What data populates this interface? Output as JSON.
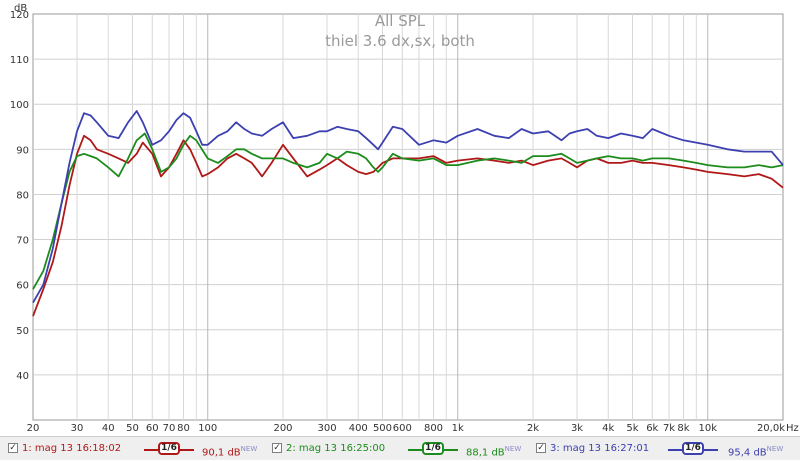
{
  "chart_data": {
    "type": "line",
    "title": "All SPL",
    "subtitle": "thiel 3.6 dx,sx, both",
    "ylabel": "dB",
    "xunit": "Hz",
    "xscale": "log",
    "xlim": [
      20,
      20000
    ],
    "ylim": [
      30,
      120
    ],
    "grid": true,
    "x_ticks": [
      {
        "v": 20,
        "label": "20"
      },
      {
        "v": 30,
        "label": "30"
      },
      {
        "v": 40,
        "label": "40"
      },
      {
        "v": 50,
        "label": "50"
      },
      {
        "v": 60,
        "label": "60"
      },
      {
        "v": 70,
        "label": "70"
      },
      {
        "v": 80,
        "label": "80"
      },
      {
        "v": 100,
        "label": "100"
      },
      {
        "v": 200,
        "label": "200"
      },
      {
        "v": 300,
        "label": "300"
      },
      {
        "v": 400,
        "label": "400"
      },
      {
        "v": 500,
        "label": "500"
      },
      {
        "v": 600,
        "label": "600"
      },
      {
        "v": 800,
        "label": "800"
      },
      {
        "v": 1000,
        "label": "1k"
      },
      {
        "v": 2000,
        "label": "2k"
      },
      {
        "v": 3000,
        "label": "3k"
      },
      {
        "v": 4000,
        "label": "4k"
      },
      {
        "v": 5000,
        "label": "5k"
      },
      {
        "v": 6000,
        "label": "6k"
      },
      {
        "v": 7000,
        "label": "7k"
      },
      {
        "v": 8000,
        "label": "8k"
      },
      {
        "v": 10000,
        "label": "10k"
      },
      {
        "v": 20000,
        "label": "20,0k"
      }
    ],
    "y_ticks": [
      {
        "v": 40,
        "label": "40"
      },
      {
        "v": 50,
        "label": "50"
      },
      {
        "v": 60,
        "label": "60"
      },
      {
        "v": 70,
        "label": "70"
      },
      {
        "v": 80,
        "label": "80"
      },
      {
        "v": 90,
        "label": "90"
      },
      {
        "v": 100,
        "label": "100"
      },
      {
        "v": 110,
        "label": "110"
      },
      {
        "v": 120,
        "label": "120"
      }
    ],
    "series": [
      {
        "color": "#b01818",
        "x": [
          20,
          22,
          24,
          26,
          28,
          30,
          32,
          34,
          36,
          40,
          44,
          48,
          52,
          55,
          60,
          65,
          70,
          75,
          80,
          85,
          90,
          95,
          100,
          110,
          120,
          130,
          140,
          150,
          165,
          180,
          200,
          220,
          250,
          280,
          300,
          330,
          360,
          400,
          430,
          460,
          480,
          500,
          550,
          600,
          700,
          800,
          900,
          1000,
          1200,
          1400,
          1600,
          1800,
          2000,
          2300,
          2600,
          2800,
          3000,
          3300,
          3600,
          4000,
          4500,
          5000,
          5500,
          6000,
          7000,
          8000,
          9000,
          10000,
          12000,
          14000,
          16000,
          18000,
          20000
        ],
        "y": [
          53,
          59,
          65,
          73,
          82,
          89,
          93,
          92,
          90,
          89,
          88,
          87,
          89,
          91.5,
          89,
          84,
          86,
          89,
          92,
          90,
          87,
          84,
          84.5,
          86,
          88,
          89,
          88,
          87,
          84,
          87,
          91,
          88,
          84,
          85.5,
          86.5,
          88,
          86.5,
          85,
          84.5,
          85,
          86,
          87,
          88,
          88,
          88,
          88.5,
          87,
          87.5,
          88,
          87.5,
          87,
          87.5,
          86.5,
          87.5,
          88,
          87,
          86,
          87.5,
          88,
          87,
          87,
          87.5,
          87,
          87,
          86.5,
          86,
          85.5,
          85,
          84.5,
          84,
          84.5,
          83.5,
          81.5
        ]
      },
      {
        "color": "#1c8c1c",
        "x": [
          20,
          22,
          24,
          26,
          28,
          30,
          32,
          34,
          36,
          40,
          44,
          48,
          52,
          56,
          60,
          65,
          70,
          75,
          80,
          85,
          90,
          100,
          110,
          120,
          130,
          140,
          150,
          165,
          180,
          200,
          220,
          250,
          280,
          300,
          330,
          360,
          400,
          430,
          460,
          480,
          500,
          550,
          600,
          700,
          800,
          900,
          1000,
          1200,
          1400,
          1600,
          1800,
          2000,
          2300,
          2600,
          2800,
          3000,
          3300,
          3600,
          4000,
          4500,
          5000,
          5500,
          6000,
          7000,
          8000,
          9000,
          10000,
          12000,
          14000,
          16000,
          18000,
          20000
        ],
        "y": [
          59,
          63,
          70,
          78,
          85,
          88.5,
          89,
          88.5,
          88,
          86,
          84,
          88,
          92,
          93.5,
          90,
          85,
          86,
          88,
          91,
          93,
          92,
          88,
          87,
          88.5,
          90,
          90,
          89,
          88,
          88,
          88,
          87,
          86,
          87,
          89,
          88,
          89.5,
          89,
          88,
          86,
          85,
          86,
          89,
          88,
          87.5,
          88,
          86.5,
          86.5,
          87.5,
          88,
          87.5,
          87,
          88.5,
          88.5,
          89,
          88,
          87,
          87.5,
          88,
          88.5,
          88,
          88,
          87.5,
          88,
          88,
          87.5,
          87,
          86.5,
          86,
          86,
          86.5,
          86,
          86.5
        ]
      },
      {
        "color": "#3c40b0",
        "x": [
          20,
          22,
          24,
          26,
          28,
          30,
          32,
          34,
          36,
          40,
          44,
          48,
          52,
          55,
          60,
          65,
          70,
          75,
          80,
          85,
          90,
          95,
          100,
          110,
          120,
          130,
          140,
          150,
          165,
          180,
          200,
          220,
          250,
          280,
          300,
          330,
          360,
          400,
          430,
          460,
          480,
          500,
          550,
          600,
          700,
          800,
          900,
          1000,
          1200,
          1400,
          1600,
          1800,
          2000,
          2300,
          2600,
          2800,
          3000,
          3300,
          3600,
          4000,
          4500,
          5000,
          5500,
          6000,
          7000,
          8000,
          9000,
          10000,
          12000,
          14000,
          16000,
          18000,
          20000
        ],
        "y": [
          56,
          60,
          68,
          78,
          87,
          94,
          98,
          97.5,
          96,
          93,
          92.5,
          96,
          98.5,
          96,
          91,
          92,
          94,
          96.5,
          98,
          97,
          94,
          91,
          91,
          93,
          94,
          96,
          94.5,
          93.5,
          93,
          94.5,
          96,
          92.5,
          93,
          94,
          94,
          95,
          94.5,
          94,
          92.5,
          91,
          90,
          91.5,
          95,
          94.5,
          91,
          92,
          91.5,
          93,
          94.5,
          93,
          92.5,
          94.5,
          93.5,
          94,
          92,
          93.5,
          94,
          94.5,
          93,
          92.5,
          93.5,
          93,
          92.5,
          94.5,
          93,
          92,
          91.5,
          91,
          90,
          89.5,
          89.5,
          89.5,
          86.5
        ]
      }
    ]
  },
  "legend": [
    {
      "checked": true,
      "label": "1: mag 13 16:18:02",
      "smoothing": "1/6",
      "value": "90,1 dB",
      "badge": "NEW",
      "color": "#b01818"
    },
    {
      "checked": true,
      "label": "2: mag 13 16:25:00",
      "smoothing": "1/6",
      "value": "88,1 dB",
      "badge": "NEW",
      "color": "#1c8c1c"
    },
    {
      "checked": true,
      "label": "3: mag 13 16:27:01",
      "smoothing": "1/6",
      "value": "95,4 dB",
      "badge": "NEW",
      "color": "#3c40b0"
    }
  ]
}
